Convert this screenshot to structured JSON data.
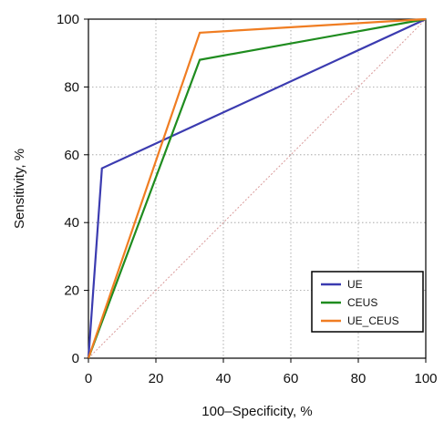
{
  "chart_data": {
    "type": "line",
    "title": "",
    "xlabel": "100–Specificity, %",
    "ylabel": "Sensitivity, %",
    "xlim": [
      0,
      100
    ],
    "ylim": [
      0,
      100
    ],
    "x_ticks": [
      0,
      20,
      40,
      60,
      80,
      100
    ],
    "y_ticks": [
      0,
      20,
      40,
      60,
      80,
      100
    ],
    "grid": true,
    "legend_position": "bottom-right",
    "series": [
      {
        "name": "UE",
        "color": "#3b3bb0",
        "x": [
          0,
          4,
          100
        ],
        "y": [
          0,
          56,
          100
        ]
      },
      {
        "name": "CEUS",
        "color": "#1f8c1f",
        "x": [
          0,
          33,
          100
        ],
        "y": [
          0,
          88,
          100
        ]
      },
      {
        "name": "UE_CEUS",
        "color": "#f07d22",
        "x": [
          0,
          33,
          100
        ],
        "y": [
          0,
          96,
          100
        ]
      }
    ],
    "reference_line": {
      "color": "#d99a9a",
      "x": [
        0,
        100
      ],
      "y": [
        0,
        100
      ]
    }
  }
}
